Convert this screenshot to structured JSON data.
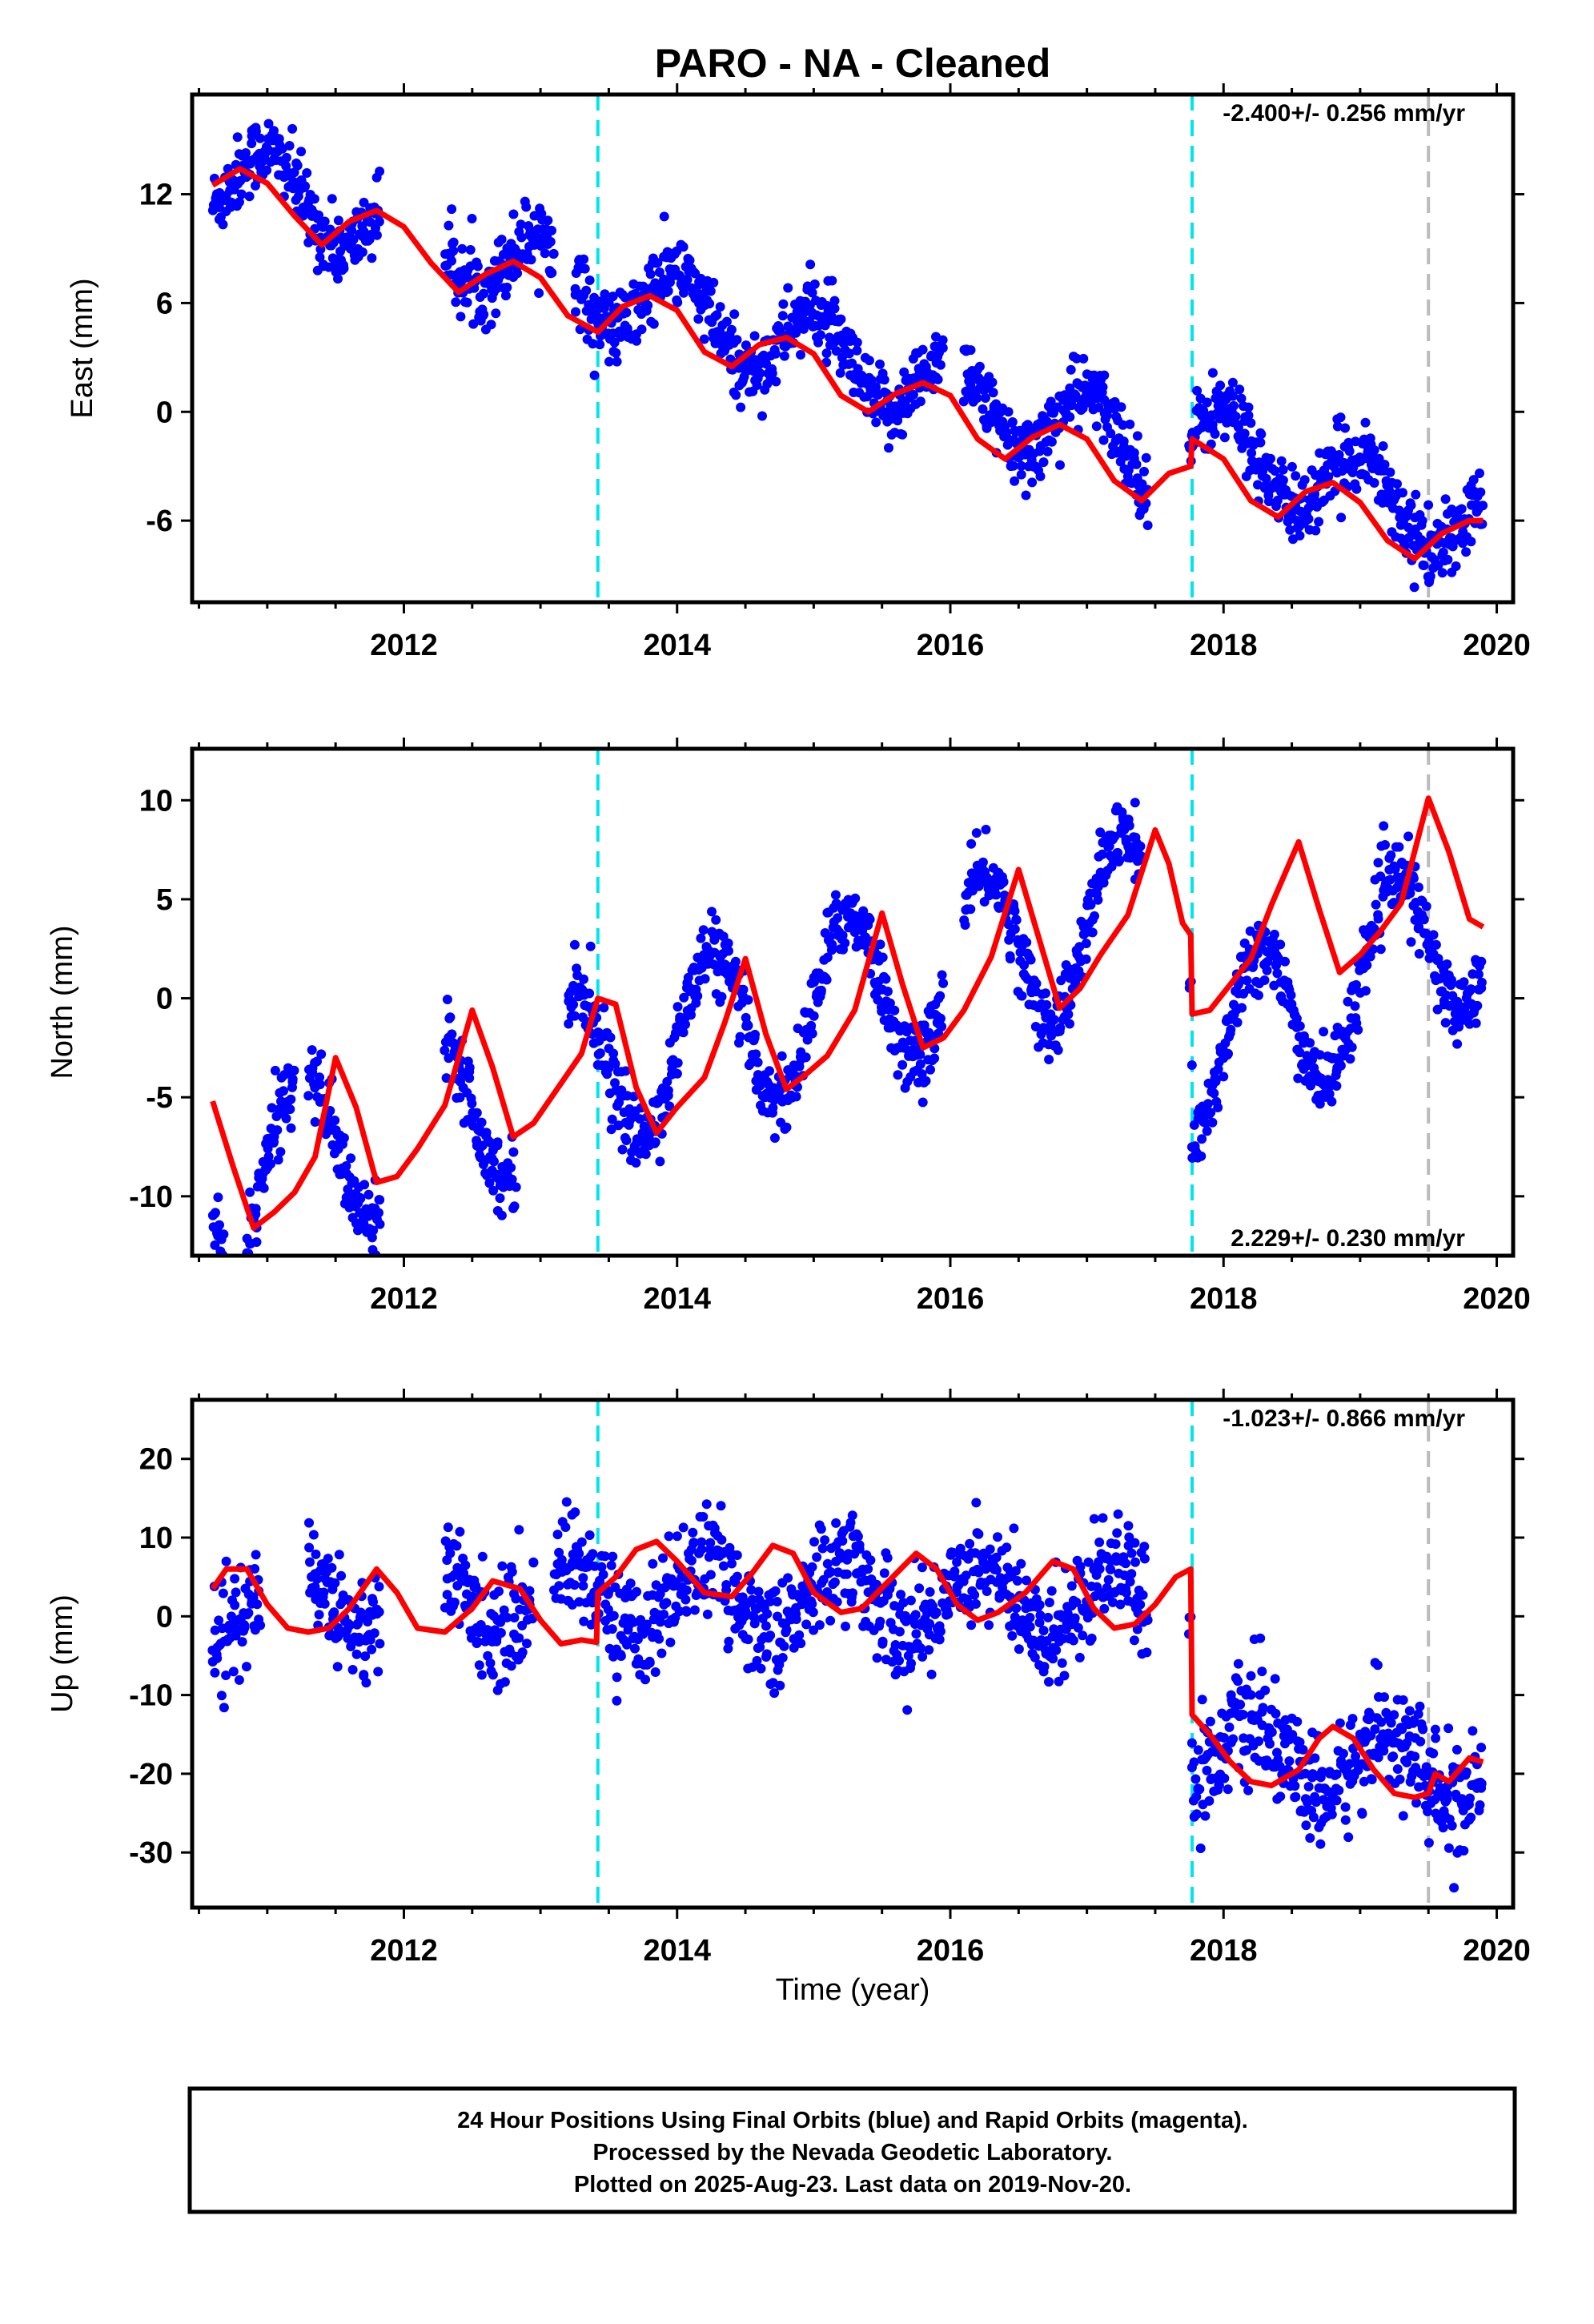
{
  "title": "PARO  - NA - Cleaned",
  "xlabel": "Time (year)",
  "caption": [
    "24 Hour Positions Using Final Orbits (blue) and Rapid Orbits (magenta).",
    "Processed by the Nevada Geodetic Laboratory.",
    "Plotted on 2025-Aug-23. Last data on 2019-Nov-20."
  ],
  "colors": {
    "final_orbits": "#0000ff",
    "rapid_orbits": "#ff00ff",
    "model": "#ff0000",
    "equipment_change": "#00e5ee",
    "other_event": "#bbbbbb"
  },
  "chart_data": [
    {
      "type": "scatter",
      "ylabel": "East (mm)",
      "rate_label": "-2.400+/- 0.256 mm/yr",
      "rate_position": "top-right",
      "xlim": [
        2010.45,
        2020.12
      ],
      "ylim": [
        -10.5,
        17.5
      ],
      "xticks": [
        2012,
        2014,
        2016,
        2018,
        2020
      ],
      "yticks": [
        -6,
        0,
        6,
        12
      ],
      "event_lines": [
        {
          "year": 2013.42,
          "color": "cyan"
        },
        {
          "year": 2017.77,
          "color": "cyan"
        },
        {
          "year": 2019.5,
          "color": "gray"
        }
      ],
      "series": [
        {
          "kind": "observations",
          "segments": [
            [
              2010.6,
              2011.83
            ],
            [
              2012.3,
              2013.1
            ],
            [
              2013.25,
              2015.95
            ],
            [
              2016.1,
              2017.45
            ],
            [
              2017.75,
              2019.9
            ]
          ],
          "trend": [
            [
              2010.6,
              13.2
            ],
            [
              2017.76,
              -2.8
            ],
            [
              2017.77,
              -1.4
            ],
            [
              2019.9,
              -6.5
            ]
          ],
          "annual_amplitude": 2.1,
          "annual_phase": 1.5,
          "scatter": 1.0
        },
        {
          "kind": "model",
          "x": [
            2010.6,
            2010.8,
            2011.0,
            2011.2,
            2011.4,
            2011.6,
            2011.8,
            2012.0,
            2012.2,
            2012.4,
            2012.6,
            2012.8,
            2013.0,
            2013.2,
            2013.42,
            2013.6,
            2013.8,
            2014.0,
            2014.2,
            2014.4,
            2014.6,
            2014.8,
            2015.0,
            2015.2,
            2015.4,
            2015.6,
            2015.8,
            2016.0,
            2016.2,
            2016.4,
            2016.6,
            2016.8,
            2017.0,
            2017.2,
            2017.4,
            2017.6,
            2017.76,
            2017.77,
            2018.0,
            2018.2,
            2018.4,
            2018.6,
            2018.8,
            2019.0,
            2019.2,
            2019.4,
            2019.6,
            2019.8,
            2019.9
          ],
          "y": [
            12.5,
            13.4,
            12.6,
            10.8,
            9.2,
            10.5,
            11.1,
            10.2,
            8.2,
            6.6,
            7.6,
            8.3,
            7.4,
            5.3,
            4.4,
            5.8,
            6.4,
            5.6,
            3.3,
            2.5,
            3.7,
            4.1,
            3.2,
            0.9,
            0.0,
            1.0,
            1.6,
            0.9,
            -1.5,
            -2.6,
            -1.4,
            -0.7,
            -1.5,
            -3.8,
            -4.9,
            -3.4,
            -3.0,
            -1.5,
            -2.6,
            -4.9,
            -5.8,
            -4.4,
            -3.9,
            -5.0,
            -7.1,
            -8.1,
            -6.7,
            -6.0,
            -6.0
          ]
        }
      ]
    },
    {
      "type": "scatter",
      "ylabel": "North (mm)",
      "rate_label": "2.229+/- 0.230 mm/yr",
      "rate_position": "bottom-right",
      "xlim": [
        2010.45,
        2020.12
      ],
      "ylim": [
        -13,
        12.6
      ],
      "xticks": [
        2012,
        2014,
        2016,
        2018,
        2020
      ],
      "yticks": [
        -10,
        -5,
        0,
        5,
        10
      ],
      "event_lines": [
        {
          "year": 2013.42,
          "color": "cyan"
        },
        {
          "year": 2017.77,
          "color": "cyan"
        },
        {
          "year": 2019.5,
          "color": "gray"
        }
      ],
      "series": [
        {
          "kind": "observations",
          "segments": [
            [
              2010.6,
              2010.68
            ],
            [
              2010.85,
              2011.2
            ],
            [
              2011.3,
              2011.83
            ],
            [
              2012.3,
              2012.82
            ],
            [
              2013.2,
              2015.95
            ],
            [
              2016.1,
              2017.4
            ],
            [
              2017.75,
              2019.9
            ]
          ],
          "trend": [
            [
              2010.6,
              -9.0
            ],
            [
              2017.76,
              5.0
            ],
            [
              2017.77,
              -3.4
            ],
            [
              2019.9,
              4.2
            ]
          ],
          "annual_amplitude": 4.2,
          "annual_phase": 0.0,
          "scatter": 0.9
        },
        {
          "kind": "model",
          "x": [
            2010.6,
            2010.75,
            2010.9,
            2011.05,
            2011.2,
            2011.35,
            2011.5,
            2011.65,
            2011.8,
            2011.95,
            2012.1,
            2012.3,
            2012.5,
            2012.65,
            2012.8,
            2012.95,
            2013.1,
            2013.3,
            2013.42,
            2013.55,
            2013.7,
            2013.85,
            2014.0,
            2014.2,
            2014.35,
            2014.5,
            2014.65,
            2014.8,
            2014.95,
            2015.1,
            2015.3,
            2015.5,
            2015.65,
            2015.8,
            2015.95,
            2016.1,
            2016.3,
            2016.5,
            2016.65,
            2016.8,
            2016.95,
            2017.1,
            2017.3,
            2017.5,
            2017.6,
            2017.7,
            2017.76,
            2017.77,
            2017.9,
            2018.05,
            2018.2,
            2018.35,
            2018.55,
            2018.7,
            2018.85,
            2019.0,
            2019.15,
            2019.3,
            2019.5,
            2019.65,
            2019.8,
            2019.9
          ],
          "y": [
            -5.2,
            -8.5,
            -11.6,
            -10.8,
            -9.8,
            -8.0,
            -3.0,
            -5.5,
            -9.3,
            -9.0,
            -7.6,
            -5.4,
            -0.6,
            -3.5,
            -7.0,
            -6.3,
            -4.8,
            -2.8,
            0.0,
            -0.3,
            -4.5,
            -6.8,
            -5.5,
            -4.0,
            -1.2,
            2.0,
            -1.8,
            -4.6,
            -3.8,
            -2.9,
            -0.6,
            4.3,
            0.7,
            -2.5,
            -2.0,
            -0.6,
            2.1,
            6.5,
            3.0,
            -0.5,
            0.5,
            2.2,
            4.2,
            8.5,
            6.8,
            3.8,
            3.2,
            -0.8,
            -0.6,
            0.7,
            2.0,
            4.7,
            7.9,
            4.5,
            1.3,
            2.2,
            3.4,
            4.8,
            10.1,
            7.4,
            4.0,
            3.6
          ]
        }
      ]
    },
    {
      "type": "scatter",
      "ylabel": "Up (mm)",
      "rate_label": "-1.023+/- 0.866 mm/yr",
      "rate_position": "top-right",
      "xlim": [
        2010.45,
        2020.12
      ],
      "ylim": [
        -37,
        27.5
      ],
      "xticks": [
        2012,
        2014,
        2016,
        2018,
        2020
      ],
      "yticks": [
        -30,
        -20,
        -10,
        0,
        10,
        20
      ],
      "event_lines": [
        {
          "year": 2013.42,
          "color": "cyan"
        },
        {
          "year": 2017.77,
          "color": "cyan"
        },
        {
          "year": 2019.5,
          "color": "gray"
        }
      ],
      "series": [
        {
          "kind": "observations",
          "segments": [
            [
              2010.6,
              2010.95
            ],
            [
              2011.3,
              2011.83
            ],
            [
              2012.3,
              2012.95
            ],
            [
              2013.1,
              2017.45
            ],
            [
              2017.75,
              2019.9
            ]
          ],
          "trend": [
            [
              2010.6,
              3.0
            ],
            [
              2017.76,
              2.0
            ],
            [
              2017.77,
              -17.0
            ],
            [
              2019.9,
              -20.0
            ]
          ],
          "annual_amplitude": 4.5,
          "annual_phase": 0.3,
          "scatter": 3.4
        },
        {
          "kind": "model",
          "x": [
            2010.6,
            2010.7,
            2010.85,
            2011.0,
            2011.15,
            2011.3,
            2011.45,
            2011.6,
            2011.8,
            2011.95,
            2012.1,
            2012.3,
            2012.5,
            2012.65,
            2012.85,
            2013.0,
            2013.15,
            2013.3,
            2013.41,
            2013.42,
            2013.55,
            2013.7,
            2013.85,
            2014.0,
            2014.2,
            2014.4,
            2014.55,
            2014.7,
            2014.85,
            2015.0,
            2015.2,
            2015.35,
            2015.55,
            2015.75,
            2015.9,
            2016.05,
            2016.2,
            2016.35,
            2016.55,
            2016.75,
            2016.9,
            2017.05,
            2017.2,
            2017.35,
            2017.5,
            2017.65,
            2017.76,
            2017.77,
            2017.9,
            2018.05,
            2018.2,
            2018.35,
            2018.55,
            2018.7,
            2018.8,
            2018.95,
            2019.1,
            2019.25,
            2019.4,
            2019.5,
            2019.55,
            2019.65,
            2019.8,
            2019.9
          ],
          "y": [
            3.5,
            6.0,
            6.0,
            1.5,
            -1.5,
            -2.0,
            -1.5,
            1.0,
            6.0,
            3.0,
            -1.5,
            -2.0,
            1.0,
            4.5,
            3.5,
            -0.5,
            -3.5,
            -3.0,
            -3.3,
            3.0,
            5.0,
            8.5,
            9.5,
            7.0,
            3.0,
            2.5,
            5.5,
            9.0,
            8.0,
            3.0,
            0.5,
            1.0,
            4.5,
            8.0,
            6.0,
            1.5,
            -0.5,
            0.5,
            3.0,
            7.0,
            6.0,
            1.0,
            -1.5,
            -1.0,
            1.5,
            5.0,
            6.0,
            -12.5,
            -15.0,
            -18.5,
            -21.0,
            -21.5,
            -19.5,
            -15.5,
            -14.0,
            -15.5,
            -19.5,
            -22.5,
            -23.0,
            -22.5,
            -20.0,
            -21.0,
            -18.0,
            -18.5
          ]
        }
      ]
    }
  ]
}
